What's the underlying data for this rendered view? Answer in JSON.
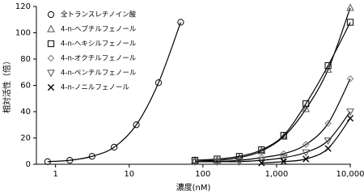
{
  "chart_data": {
    "type": "scatter",
    "xlabel": "濃度(nM)",
    "ylabel": "相対活性（倍）",
    "xscale": "log",
    "xlim": [
      0.55,
      10000
    ],
    "ylim": [
      0,
      120
    ],
    "xticks": [
      1,
      10,
      100,
      {
        "value": 1000,
        "label": "1,000"
      },
      {
        "value": 10000,
        "label": "10,000"
      }
    ],
    "yticks": [
      0,
      20,
      40,
      60,
      80,
      100,
      120
    ],
    "legend": "upper left",
    "fit_curves": true,
    "series": [
      {
        "name": "全トランスレチノイン酸",
        "marker": "circle",
        "color": "#000000",
        "x": [
          0.78,
          1.56,
          3.13,
          6.25,
          12.5,
          25,
          50
        ],
        "values": [
          2,
          3,
          6,
          13,
          30,
          62,
          108
        ]
      },
      {
        "name": "4-n-ヘプチルフェノール",
        "marker": "triangle-up",
        "color": "#555555",
        "x": [
          78,
          156,
          312,
          625,
          1250,
          2500,
          5000,
          10000
        ],
        "values": [
          3,
          3,
          5,
          10,
          21,
          42,
          72,
          119
        ]
      },
      {
        "name": "4-n-ヘキシルフェノール",
        "marker": "square",
        "color": "#000000",
        "x": [
          78,
          156,
          312,
          625,
          1250,
          2500,
          5000,
          10000
        ],
        "values": [
          3,
          4,
          6,
          11,
          22,
          46,
          75,
          108
        ]
      },
      {
        "name": "4-n-オクチルフェノール",
        "marker": "diamond",
        "color": "#777777",
        "x": [
          78,
          156,
          312,
          625,
          1250,
          2500,
          5000,
          10000
        ],
        "values": [
          2,
          2,
          3,
          5,
          8,
          15,
          31,
          65
        ]
      },
      {
        "name": "4-n-ペンチルフェノール",
        "marker": "triangle-down",
        "color": "#555555",
        "x": [
          78,
          156,
          312,
          625,
          1250,
          2500,
          5000,
          10000
        ],
        "values": [
          2,
          2,
          2,
          3,
          5,
          9,
          18,
          40
        ]
      },
      {
        "name": "4-n-ノニルフェノール",
        "marker": "x",
        "color": "#000000",
        "x": [
          625,
          1250,
          2500,
          5000,
          10000
        ],
        "values": [
          1,
          2,
          4,
          12,
          35
        ]
      }
    ]
  }
}
